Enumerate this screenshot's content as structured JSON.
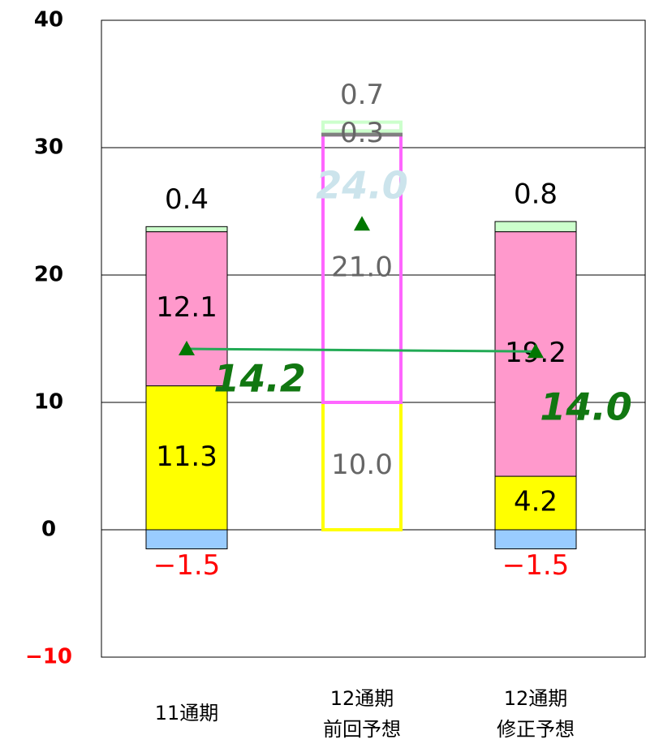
{
  "chart_data": {
    "type": "stacked_bar",
    "categories": [
      "11通期",
      "12通期\n前回予想",
      "12通期\n修正予想"
    ],
    "series": [
      {
        "color": "#99ccff",
        "values": [
          -1.5,
          null,
          -1.5
        ],
        "value_labels": [
          "−1.5",
          null,
          "−1.5"
        ]
      },
      {
        "color": "#ffff00",
        "values": [
          11.3,
          10.0,
          4.2
        ],
        "value_labels": [
          "11.3",
          "10.0",
          "4.2"
        ]
      },
      {
        "color": "#ff99cc",
        "values": [
          12.1,
          21.0,
          19.2
        ],
        "value_labels": [
          "12.1",
          "21.0",
          "19.2"
        ]
      },
      {
        "color": "#808080",
        "values": [
          null,
          0.3,
          null
        ],
        "value_labels": [
          null,
          "0.3",
          null
        ]
      },
      {
        "color": "#ccffcc",
        "values": [
          0.4,
          0.7,
          0.8
        ],
        "value_labels": [
          "0.4",
          "0.7",
          "0.8"
        ]
      }
    ],
    "outline_color": {
      "1": "#ffff00",
      "2": "#ff66ff",
      "4": "#ccffcc"
    },
    "outlined_categories": [
      1
    ],
    "label_colors": [
      "#000000",
      "#666666",
      "#000000"
    ],
    "negative_color": "#ff0000",
    "totals": {
      "values": [
        14.2,
        24.0,
        14.0
      ],
      "value_labels": [
        "14.2",
        "24.0",
        "14.0"
      ],
      "marker_color": "#007700",
      "line_color": "#22aa55",
      "label_colors": [
        "#117711",
        "#cce4ec",
        "#117711"
      ]
    },
    "ylim": [
      -10,
      40
    ],
    "yticks": [
      {
        "value": -10,
        "label": "−10"
      },
      0,
      10,
      20,
      30,
      40
    ],
    "grid": true
  }
}
